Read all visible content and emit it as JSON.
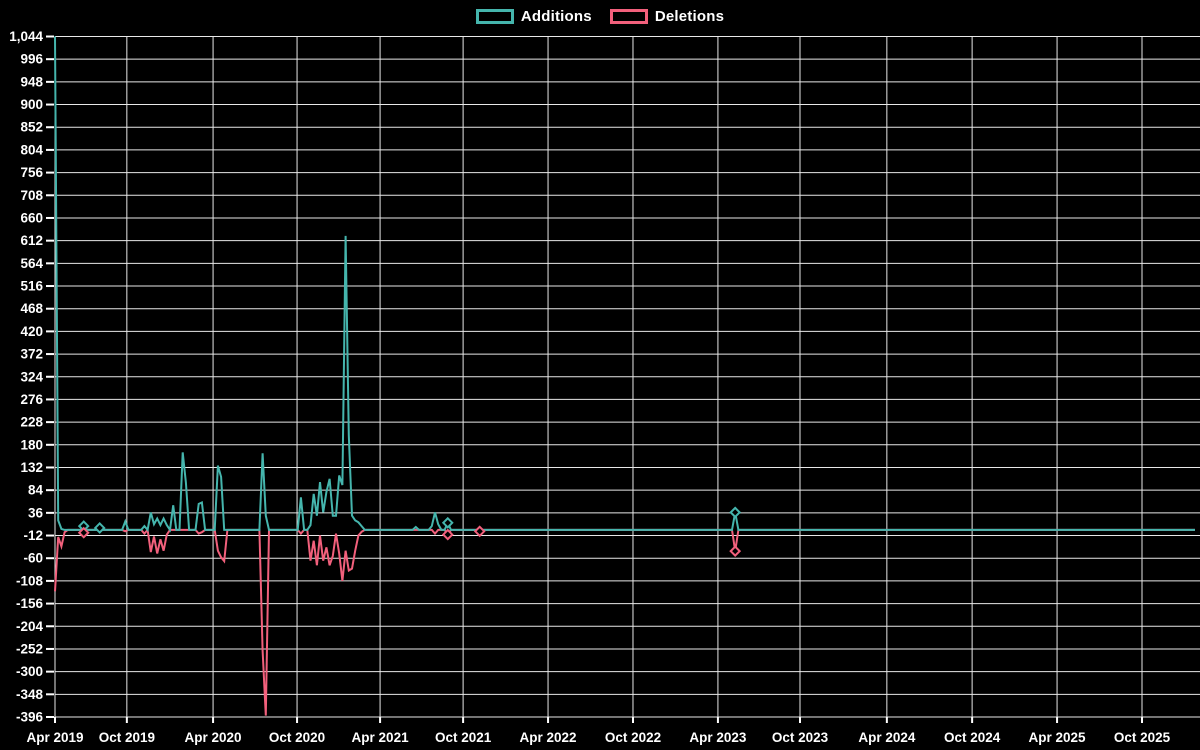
{
  "chart_data": {
    "type": "line",
    "title": "",
    "background": "#000000",
    "grid": true,
    "grid_color": "#e8e8e8",
    "text_color": "#ffffff",
    "legend_position": "top-center",
    "x_axis": {
      "unit": "week",
      "total_weeks": 357,
      "tick_labels": [
        "Apr 2019",
        "Oct 2019",
        "Apr 2020",
        "Oct 2020",
        "Apr 2021",
        "Oct 2021",
        "Apr 2022",
        "Oct 2022",
        "Apr 2023",
        "Oct 2023",
        "Apr 2024",
        "Oct 2024",
        "Apr 2025",
        "Oct 2025"
      ],
      "tick_weeks": [
        0,
        22.5,
        49.5,
        75.8,
        101.8,
        127.8,
        154.4,
        181.0,
        207.6,
        233.3,
        260.5,
        287.2,
        313.8,
        340.4
      ]
    },
    "y_axis": {
      "min": -396,
      "max": 1044,
      "step": 48
    },
    "series": [
      {
        "name": "Additions",
        "color": "#45B5AD",
        "marker_weeks": [
          9,
          14,
          123,
          213
        ],
        "points_sparse": [
          [
            0,
            1044
          ],
          [
            1,
            20
          ],
          [
            2,
            2
          ],
          [
            9,
            8
          ],
          [
            14,
            4
          ],
          [
            22,
            18
          ],
          [
            28,
            8
          ],
          [
            30,
            37
          ],
          [
            31,
            12
          ],
          [
            32,
            24
          ],
          [
            33,
            10
          ],
          [
            34,
            24
          ],
          [
            35,
            10
          ],
          [
            37,
            52
          ],
          [
            40,
            164
          ],
          [
            41,
            100
          ],
          [
            45,
            55
          ],
          [
            46,
            58
          ],
          [
            51,
            136
          ],
          [
            52,
            112
          ],
          [
            65,
            162
          ],
          [
            66,
            30
          ],
          [
            77,
            69
          ],
          [
            80,
            10
          ],
          [
            81,
            76
          ],
          [
            82,
            30
          ],
          [
            83,
            101
          ],
          [
            84,
            37
          ],
          [
            85,
            80
          ],
          [
            86,
            108
          ],
          [
            87,
            30
          ],
          [
            88,
            30
          ],
          [
            89,
            115
          ],
          [
            90,
            95
          ],
          [
            91,
            622
          ],
          [
            92,
            200
          ],
          [
            93,
            30
          ],
          [
            94,
            20
          ],
          [
            95,
            16
          ],
          [
            96,
            8
          ],
          [
            113,
            6
          ],
          [
            118,
            8
          ],
          [
            119,
            37
          ],
          [
            120,
            12
          ],
          [
            123,
            15
          ],
          [
            213,
            37
          ]
        ]
      },
      {
        "name": "Deletions",
        "color": "#F2607C",
        "marker_weeks": [
          9,
          123,
          133,
          213
        ],
        "points_sparse": [
          [
            0,
            -130
          ],
          [
            1,
            -15
          ],
          [
            2,
            -35
          ],
          [
            3,
            -5
          ],
          [
            9,
            -6
          ],
          [
            22,
            -3
          ],
          [
            28,
            -8
          ],
          [
            30,
            -47
          ],
          [
            31,
            -14
          ],
          [
            32,
            -50
          ],
          [
            33,
            -20
          ],
          [
            34,
            -44
          ],
          [
            35,
            -10
          ],
          [
            45,
            -8
          ],
          [
            46,
            -5
          ],
          [
            51,
            -44
          ],
          [
            52,
            -58
          ],
          [
            53,
            -66
          ],
          [
            65,
            -255
          ],
          [
            66,
            -393
          ],
          [
            77,
            -8
          ],
          [
            80,
            -65
          ],
          [
            81,
            -23
          ],
          [
            82,
            -75
          ],
          [
            83,
            -12
          ],
          [
            84,
            -65
          ],
          [
            85,
            -37
          ],
          [
            86,
            -75
          ],
          [
            87,
            -55
          ],
          [
            88,
            -8
          ],
          [
            89,
            -50
          ],
          [
            90,
            -108
          ],
          [
            91,
            -44
          ],
          [
            92,
            -86
          ],
          [
            93,
            -82
          ],
          [
            94,
            -44
          ],
          [
            95,
            -12
          ],
          [
            96,
            -4
          ],
          [
            119,
            -8
          ],
          [
            123,
            -10
          ],
          [
            133,
            -3
          ],
          [
            213,
            -45
          ]
        ]
      }
    ]
  }
}
